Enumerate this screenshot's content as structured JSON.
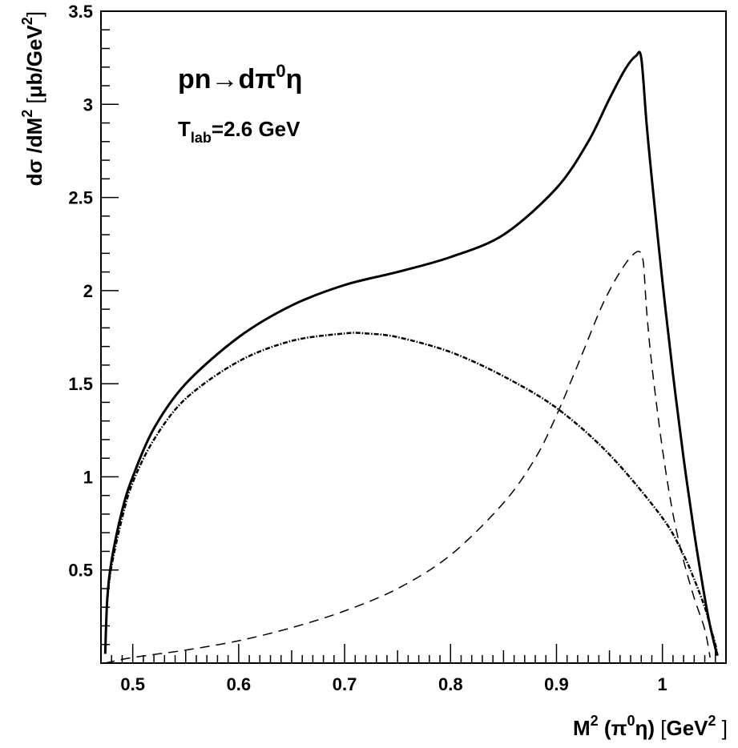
{
  "chart_data": {
    "type": "line",
    "xlim": [
      0.47,
      1.06
    ],
    "ylim": [
      0,
      3.5
    ],
    "x_ticks": [
      0.5,
      0.6,
      0.7,
      0.8,
      0.9,
      1.0
    ],
    "x_tick_labels": [
      "0.5",
      "0.6",
      "0.7",
      "0.8",
      "0.9",
      "1"
    ],
    "y_ticks": [
      0.5,
      1.0,
      1.5,
      2.0,
      2.5,
      3.0,
      3.5
    ],
    "y_tick_labels": [
      "0.5",
      "1",
      "1.5",
      "2",
      "2.5",
      "3",
      "3.5"
    ],
    "grid": false,
    "legend": "none",
    "xlabel": {
      "a": "M",
      "a_sup": "2",
      "b": " (π",
      "b_sup": "0",
      "c": "η) ",
      "d": "[",
      "e": "GeV",
      "e_sup": "2",
      "f": " ]"
    },
    "ylabel": {
      "a": "dσ /dM",
      "a_sup": "2",
      "b": " [",
      "c": "μb/GeV",
      "c_sup": "2",
      "d": "]"
    },
    "annotations": {
      "reaction": {
        "a": "pn",
        "b": "→",
        "c": "dπ",
        "c_sup": "0",
        "d": "η"
      },
      "energy": {
        "a": "T",
        "a_sub": "lab",
        "b": "=2.6 GeV"
      }
    },
    "series": [
      {
        "style": "solid",
        "x": [
          0.474,
          0.476,
          0.48,
          0.49,
          0.5,
          0.52,
          0.55,
          0.6,
          0.65,
          0.7,
          0.75,
          0.8,
          0.85,
          0.9,
          0.93,
          0.95,
          0.965,
          0.975,
          0.98,
          0.985,
          0.99,
          1.0,
          1.01,
          1.02,
          1.03,
          1.04,
          1.045,
          1.05,
          1.052
        ],
        "y": [
          0.05,
          0.35,
          0.55,
          0.82,
          1.0,
          1.26,
          1.5,
          1.75,
          1.92,
          2.03,
          2.1,
          2.18,
          2.3,
          2.55,
          2.8,
          3.03,
          3.19,
          3.26,
          3.25,
          2.9,
          2.6,
          2.05,
          1.55,
          1.1,
          0.7,
          0.35,
          0.2,
          0.08,
          0.04
        ]
      },
      {
        "style": "dash-dot",
        "x": [
          0.474,
          0.476,
          0.48,
          0.49,
          0.5,
          0.52,
          0.55,
          0.6,
          0.65,
          0.7,
          0.72,
          0.75,
          0.8,
          0.85,
          0.9,
          0.95,
          1.0,
          1.02,
          1.03,
          1.04,
          1.045,
          1.05,
          1.052
        ],
        "y": [
          0.05,
          0.33,
          0.52,
          0.78,
          0.97,
          1.2,
          1.42,
          1.62,
          1.73,
          1.77,
          1.77,
          1.75,
          1.67,
          1.54,
          1.37,
          1.12,
          0.78,
          0.58,
          0.45,
          0.3,
          0.2,
          0.1,
          0.04
        ]
      },
      {
        "style": "dashed",
        "x": [
          0.474,
          0.5,
          0.55,
          0.6,
          0.65,
          0.7,
          0.75,
          0.8,
          0.85,
          0.88,
          0.9,
          0.92,
          0.94,
          0.95,
          0.96,
          0.97,
          0.978,
          0.982,
          0.985,
          0.99,
          1.0,
          1.01,
          1.02,
          1.03,
          1.04,
          1.045
        ],
        "y": [
          0.0,
          0.03,
          0.07,
          0.12,
          0.19,
          0.28,
          0.4,
          0.58,
          0.86,
          1.1,
          1.33,
          1.6,
          1.88,
          2.0,
          2.1,
          2.18,
          2.21,
          2.15,
          1.9,
          1.6,
          1.15,
          0.8,
          0.55,
          0.35,
          0.18,
          0.03
        ]
      }
    ]
  }
}
